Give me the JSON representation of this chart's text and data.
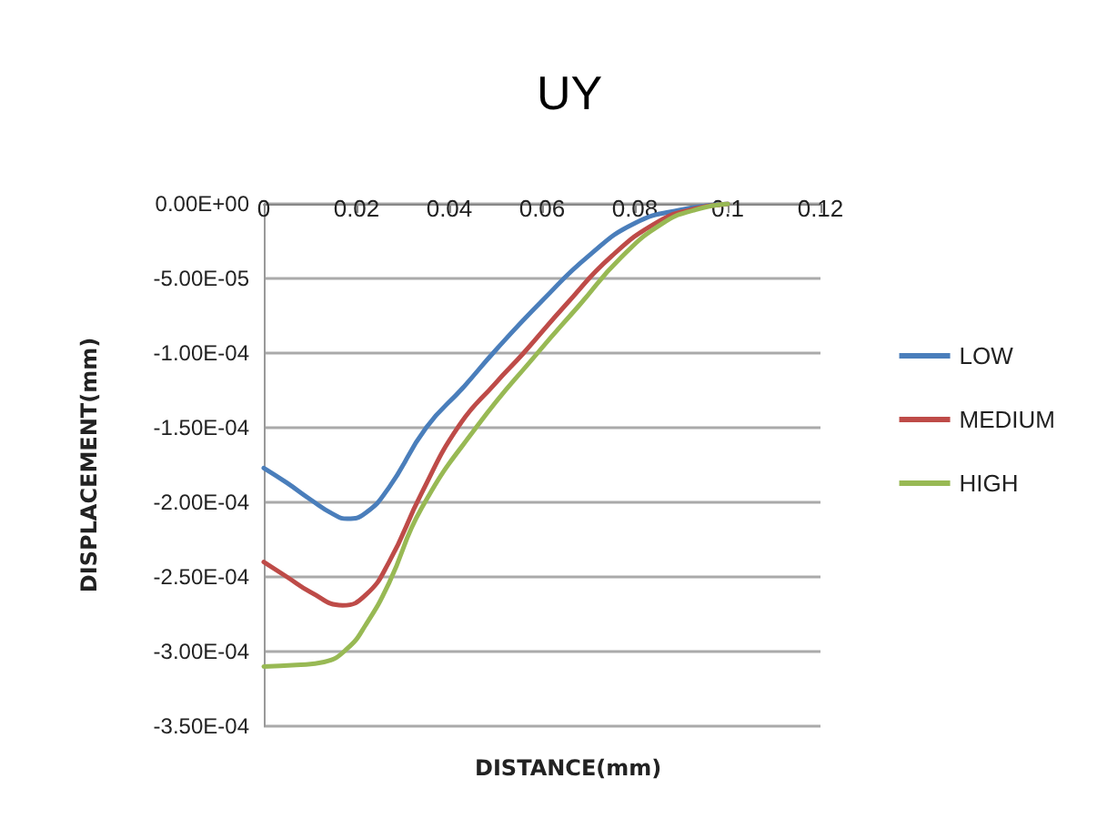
{
  "chart_data": {
    "type": "line",
    "title": "UY",
    "xlabel": "DISTANCE(mm)",
    "ylabel": "DISPLACEMENT(mm)",
    "xlim": [
      0,
      0.12
    ],
    "xticks": [
      0,
      0.02,
      0.04,
      0.06,
      0.08,
      0.1,
      0.12
    ],
    "ylim": [
      -0.00035,
      0
    ],
    "yticks": [
      {
        "value": 0,
        "label": "0.00E+00"
      },
      {
        "value": -5e-05,
        "label": "-5.00E-05"
      },
      {
        "value": -0.0001,
        "label": "-1.00E-04"
      },
      {
        "value": -0.00015,
        "label": "-1.50E-04"
      },
      {
        "value": -0.0002,
        "label": "-2.00E-04"
      },
      {
        "value": -0.00025,
        "label": "-2.50E-04"
      },
      {
        "value": -0.0003,
        "label": "-3.00E-04"
      },
      {
        "value": -0.00035,
        "label": "-3.50E-04"
      }
    ],
    "grid": "y",
    "legend": "right",
    "marker": "none",
    "line_style": "solid",
    "series": [
      {
        "name": "LOW",
        "color": "#4a7ebb",
        "x": [
          0,
          0.005,
          0.01,
          0.015,
          0.018,
          0.022,
          0.027,
          0.035,
          0.043,
          0.05,
          0.06,
          0.07,
          0.08,
          0.09,
          0.1
        ],
        "values": [
          -0.000177,
          -0.000187,
          -0.000198,
          -0.000208,
          -0.000211,
          -0.000207,
          -0.00019,
          -0.00015,
          -0.000123,
          -9.8e-05,
          -6.5e-05,
          -3.5e-05,
          -1.3e-05,
          -4e-06,
          0
        ]
      },
      {
        "name": "MEDIUM",
        "color": "#be4b48",
        "x": [
          0,
          0.005,
          0.01,
          0.017,
          0.022,
          0.027,
          0.034,
          0.042,
          0.05,
          0.056,
          0.065,
          0.075,
          0.085,
          0.092,
          0.1
        ],
        "values": [
          -0.00024,
          -0.00025,
          -0.00026,
          -0.000269,
          -0.000262,
          -0.00024,
          -0.000194,
          -0.000149,
          -0.00012,
          -0.0001,
          -6.8e-05,
          -3.5e-05,
          -1.2e-05,
          -4e-06,
          0
        ]
      },
      {
        "name": "HIGH",
        "color": "#98b954",
        "x": [
          0,
          0.007,
          0.013,
          0.018,
          0.022,
          0.027,
          0.034,
          0.046,
          0.059,
          0.068,
          0.077,
          0.086,
          0.093,
          0.1
        ],
        "values": [
          -0.00031,
          -0.000309,
          -0.000307,
          -0.000298,
          -0.000282,
          -0.000254,
          -0.000204,
          -0.000149,
          -0.0001,
          -6.8e-05,
          -3.6e-05,
          -1.3e-05,
          -4e-06,
          0
        ]
      }
    ]
  }
}
